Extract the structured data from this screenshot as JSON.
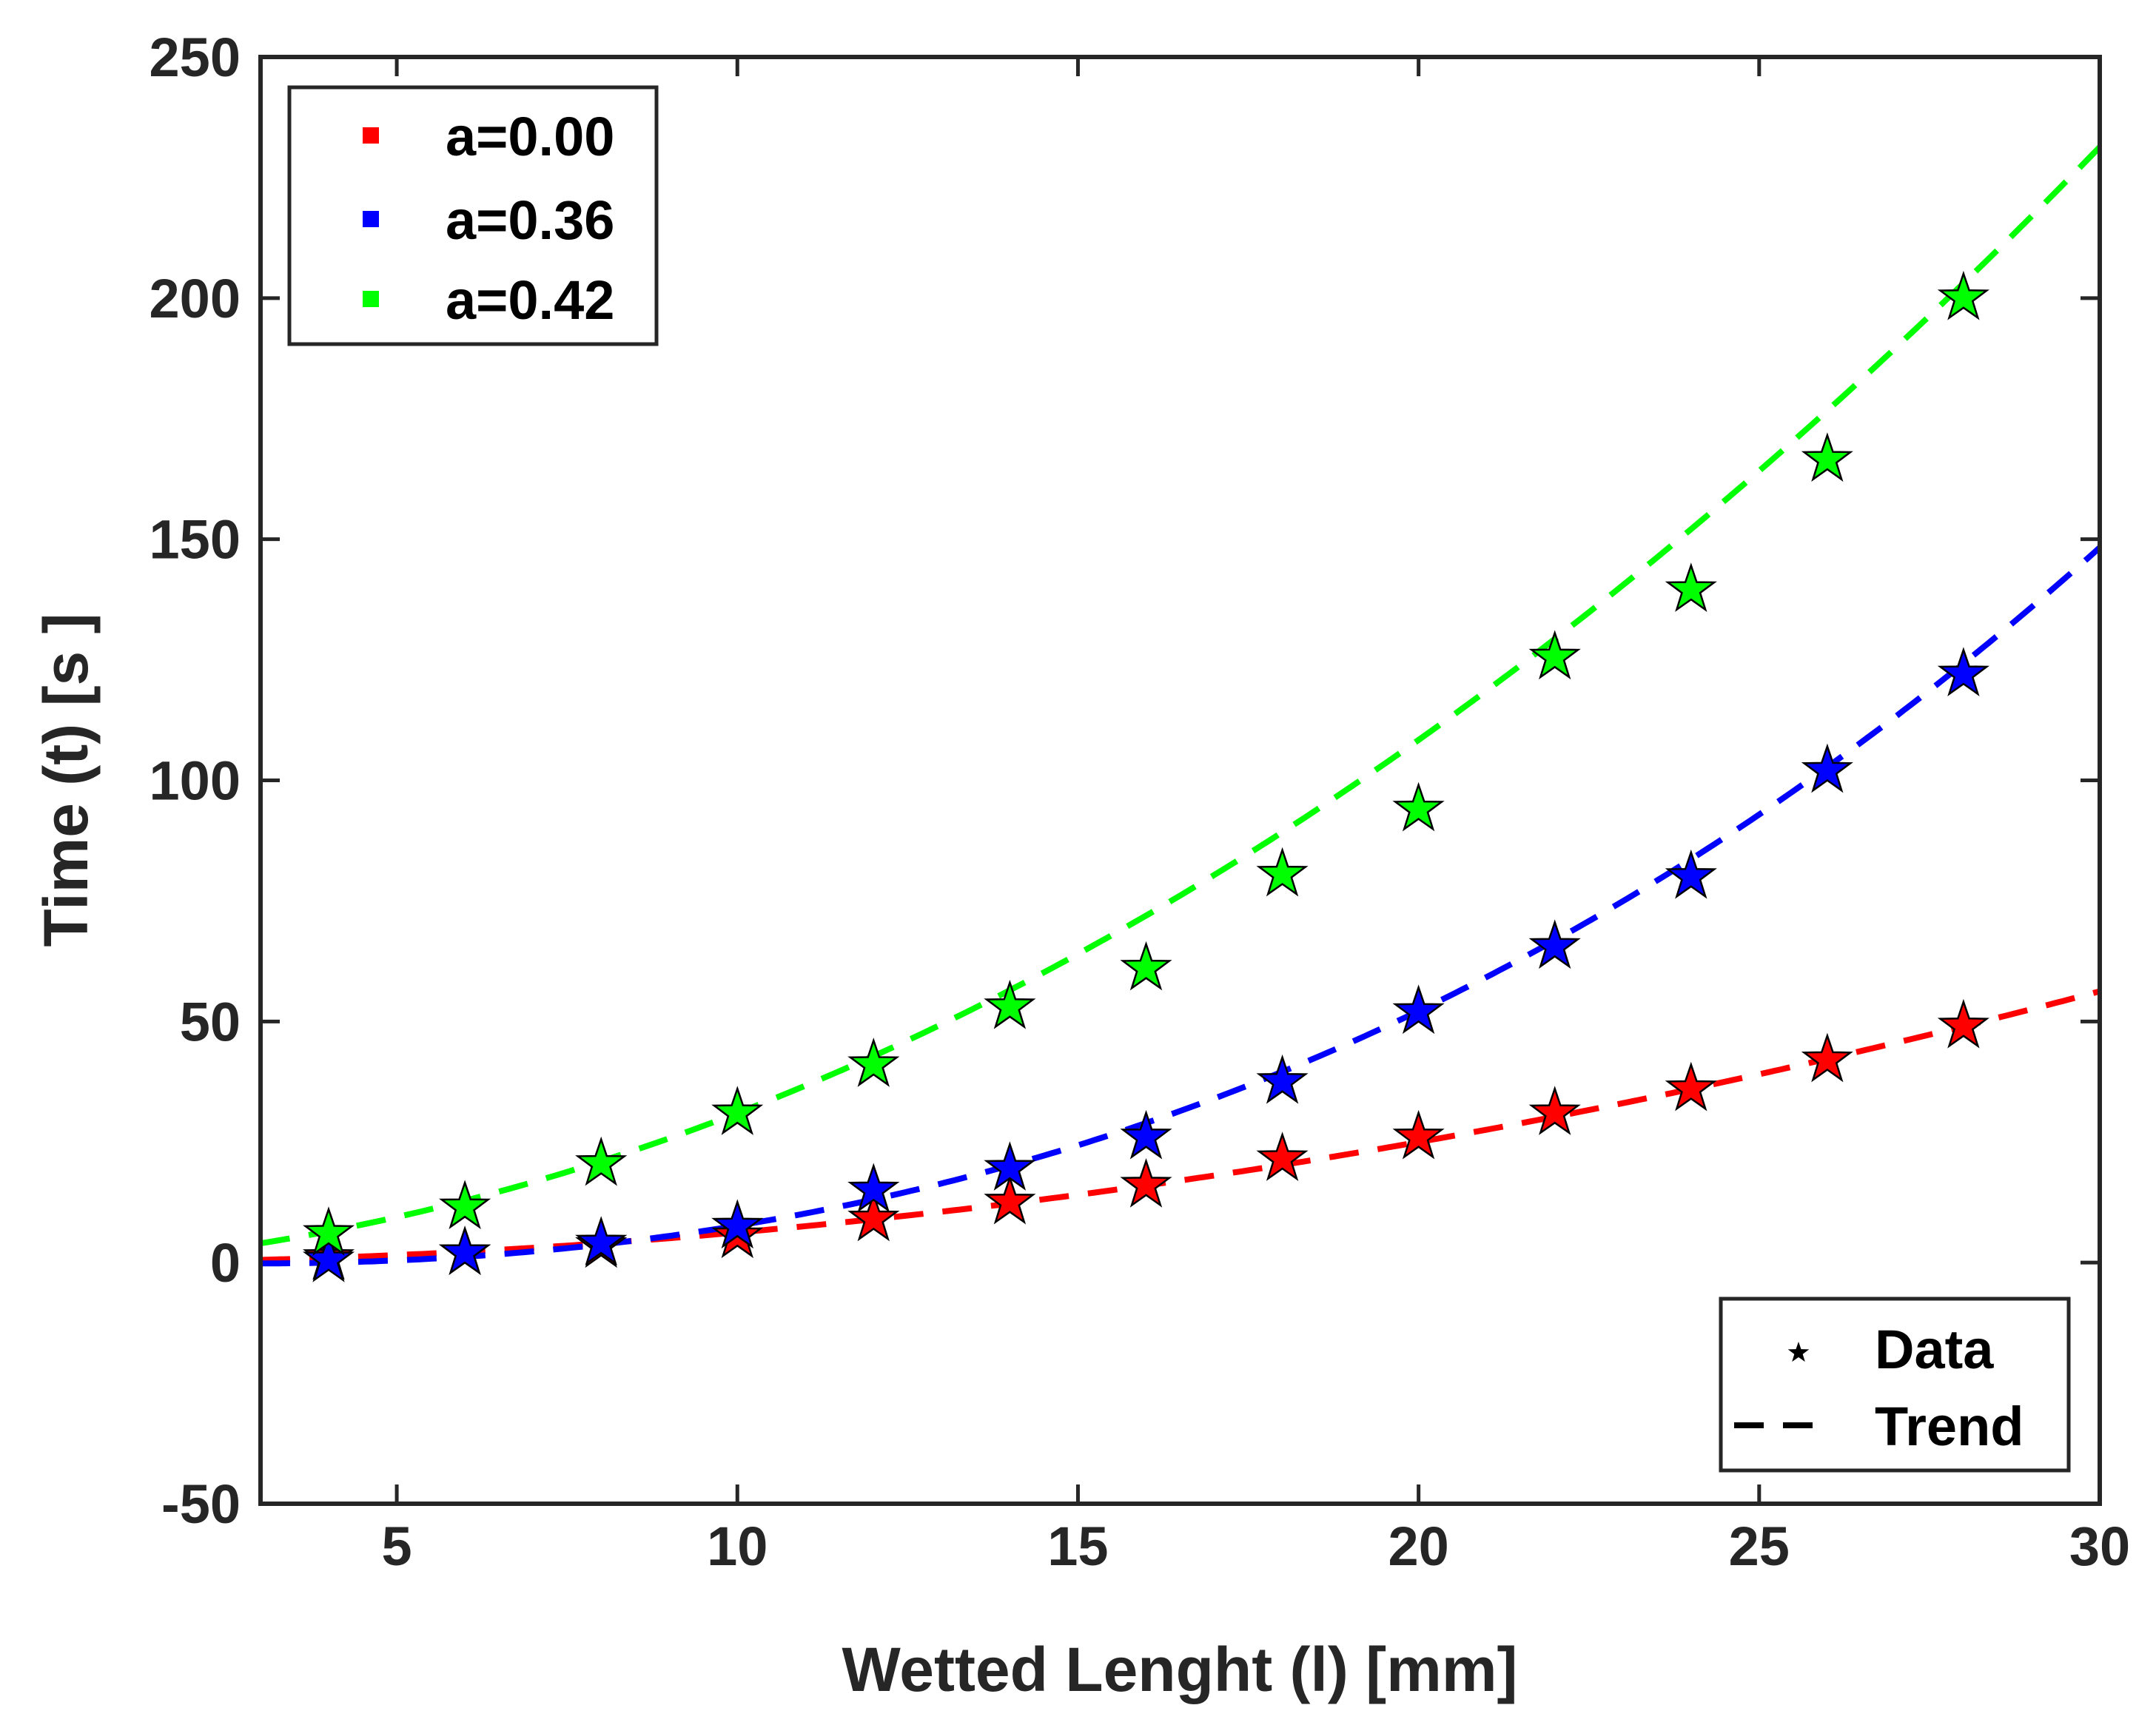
{
  "chart_data": {
    "type": "scatter",
    "title": "",
    "xlabel": "Wetted Lenght (l) [mm]",
    "ylabel": "Time (t) [s ]",
    "xlim": [
      3,
      30
    ],
    "ylim": [
      -50,
      250
    ],
    "xticks": [
      5,
      10,
      15,
      20,
      25,
      30
    ],
    "yticks": [
      -50,
      0,
      50,
      100,
      150,
      200,
      250
    ],
    "grid": false,
    "x": [
      4,
      6,
      8,
      10,
      12,
      14,
      16,
      18,
      20,
      22,
      24,
      26,
      28
    ],
    "series": [
      {
        "name": "a=0.00",
        "color": "#ff0000",
        "values": [
          1,
          2,
          3.5,
          5.5,
          9,
          12.5,
          16,
          21.5,
          26,
          31,
          36,
          42,
          49
        ],
        "trend": [
          0.0625,
          0,
          0
        ]
      },
      {
        "name": "a=0.36",
        "color": "#0000ff",
        "values": [
          0.5,
          2,
          4,
          7.5,
          15,
          19.5,
          26,
          37.5,
          52,
          65.5,
          80,
          102,
          122
        ],
        "trend": [
          0.0023,
          0.12,
          -0.76,
          0.97
        ]
      },
      {
        "name": "a=0.42",
        "color": "#00ff00",
        "values": [
          6,
          11.5,
          20.5,
          31,
          41,
          53,
          61,
          80.5,
          94,
          125.5,
          139.5,
          166.5,
          200
        ],
        "trend": [
          0.228,
          0.896,
          -0.745
        ]
      }
    ],
    "legend_series": {
      "position": "top-left",
      "entries": [
        "a=0.00",
        "a=0.36",
        "a=0.42"
      ]
    },
    "legend_style": {
      "position": "bottom-right",
      "entries": [
        {
          "marker": "star",
          "label": "Data"
        },
        {
          "marker": "dash",
          "label": "Trend"
        }
      ]
    }
  }
}
